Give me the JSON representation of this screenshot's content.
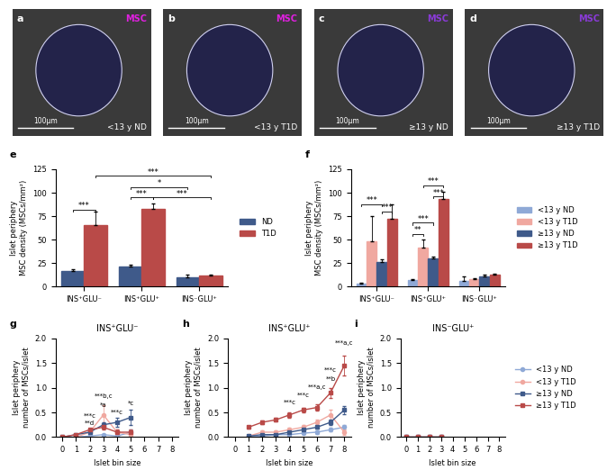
{
  "image_panels": [
    {
      "panel_letter": "a",
      "stain": "MSC",
      "stain_color": "#e020e0",
      "group": "<13 y ND",
      "scale_bar": "100µm"
    },
    {
      "panel_letter": "b",
      "stain": "MSC",
      "stain_color": "#e020e0",
      "group": "<13 y T1D",
      "scale_bar": "100µm"
    },
    {
      "panel_letter": "c",
      "stain": "MSC",
      "stain_color": "#8a3ad8",
      "group": "≥13 y ND",
      "scale_bar": "100µm"
    },
    {
      "panel_letter": "d",
      "stain": "MSC",
      "stain_color": "#8a3ad8",
      "group": "≥13 y T1D",
      "scale_bar": "100µm"
    }
  ],
  "chart_data": [
    {
      "type": "bar",
      "panel_letter": "e",
      "y_label": "Islet periphery\nMSC density (MSCs/mm²)",
      "categories": [
        "INS⁺GLU⁻",
        "INS⁺GLU⁺",
        "INS⁻GLU⁺"
      ],
      "series": [
        {
          "name": "ND",
          "color": "#3f5a8a",
          "values": [
            17,
            21,
            10
          ],
          "errors": [
            2,
            2,
            3
          ]
        },
        {
          "name": "T1D",
          "color": "#b94a48",
          "values": [
            66,
            83,
            12
          ],
          "errors": [
            14,
            6,
            1
          ]
        }
      ],
      "ylim": [
        0,
        125
      ],
      "yticks": [
        0,
        25,
        50,
        75,
        100,
        125
      ],
      "legend": "right",
      "brackets": [
        {
          "from": [
            0,
            0
          ],
          "to": [
            0,
            1
          ],
          "y": 82,
          "label": "***"
        },
        {
          "from": [
            0,
            1
          ],
          "to": [
            2,
            1
          ],
          "y": 118,
          "label": "***"
        },
        {
          "from": [
            1,
            0
          ],
          "to": [
            2,
            0
          ],
          "y": 106,
          "label": "*"
        },
        {
          "from": [
            1,
            0
          ],
          "to": [
            1,
            1
          ],
          "y": 95,
          "label": "***"
        },
        {
          "from": [
            1,
            1
          ],
          "to": [
            2,
            1
          ],
          "y": 95,
          "label": "***"
        }
      ]
    },
    {
      "type": "bar",
      "panel_letter": "f",
      "y_label": "Islet periphery\nMSC density (MSCs/mm²)",
      "categories": [
        "INS⁺GLU⁻",
        "INS⁺GLU⁺",
        "INS⁻GLU⁺"
      ],
      "series": [
        {
          "name": "<13 y ND",
          "color": "#8fa9d6",
          "values": [
            3,
            7,
            6
          ],
          "errors": [
            1,
            1,
            5
          ]
        },
        {
          "name": "<13 y T1D",
          "color": "#f0a8a0",
          "values": [
            48,
            42,
            8
          ],
          "errors": [
            27,
            8,
            1
          ]
        },
        {
          "name": "≥13 y ND",
          "color": "#3f5a8a",
          "values": [
            26,
            30,
            11
          ],
          "errors": [
            3,
            2,
            2
          ]
        },
        {
          "name": "≥13 y T1D",
          "color": "#b94a48",
          "values": [
            72,
            93,
            13
          ],
          "errors": [
            16,
            8,
            1
          ]
        }
      ],
      "ylim": [
        0,
        125
      ],
      "yticks": [
        0,
        25,
        50,
        75,
        100,
        125
      ],
      "legend": "right",
      "brackets": [
        {
          "from": [
            0,
            0
          ],
          "to": [
            0,
            2
          ],
          "y": 88,
          "label": "***"
        },
        {
          "from": [
            0,
            2
          ],
          "to": [
            0,
            3
          ],
          "y": 80,
          "label": "***"
        },
        {
          "from": [
            1,
            0
          ],
          "to": [
            1,
            1
          ],
          "y": 56,
          "label": "**"
        },
        {
          "from": [
            1,
            0
          ],
          "to": [
            1,
            2
          ],
          "y": 68,
          "label": "***"
        },
        {
          "from": [
            1,
            1
          ],
          "to": [
            1,
            3
          ],
          "y": 108,
          "label": "***"
        },
        {
          "from": [
            1,
            2
          ],
          "to": [
            1,
            3
          ],
          "y": 96,
          "label": "***"
        }
      ]
    },
    {
      "type": "line",
      "panel_letter": "g",
      "title": "INS⁺GLU⁻",
      "x_label": "Islet bin size",
      "y_label": "Islet periphery\nnumber of MSCs/islet",
      "series": [
        {
          "name": "<13 y ND",
          "color": "#8fa9d6",
          "marker": "circle",
          "x": [
            1,
            2,
            3,
            4,
            5
          ],
          "values": [
            0,
            0.02,
            0.05,
            0.02,
            0.1
          ],
          "errors": [
            0,
            0.01,
            0.02,
            0.02,
            0.05
          ]
        },
        {
          "name": "<13 y T1D",
          "color": "#f0a8a0",
          "marker": "circle",
          "x": [
            1,
            2,
            3,
            4,
            5
          ],
          "values": [
            0,
            0.1,
            0.45,
            0.1,
            0.05
          ],
          "errors": [
            0,
            0.05,
            0.2,
            0.05,
            0.03
          ]
        },
        {
          "name": "≥13 y ND",
          "color": "#3f5a8a",
          "marker": "square",
          "x": [
            0,
            1,
            2,
            3,
            4,
            5
          ],
          "values": [
            0,
            0.05,
            0.1,
            0.25,
            0.3,
            0.4
          ],
          "errors": [
            0,
            0.02,
            0.03,
            0.05,
            0.1,
            0.15
          ]
        },
        {
          "name": "≥13 y T1D",
          "color": "#b94a48",
          "marker": "square",
          "x": [
            0,
            1,
            2,
            3,
            4,
            5
          ],
          "values": [
            0,
            0.05,
            0.15,
            0.2,
            0.1,
            0.1
          ],
          "errors": [
            0,
            0.02,
            0.03,
            0.05,
            0.05,
            0.05
          ]
        }
      ],
      "annotations": [
        {
          "x": 2,
          "y": 0.38,
          "text": "***c"
        },
        {
          "x": 2,
          "y": 0.22,
          "text": "**d"
        },
        {
          "x": 3,
          "y": 0.78,
          "text": "***b,c"
        },
        {
          "x": 3,
          "y": 0.6,
          "text": "*a"
        },
        {
          "x": 4,
          "y": 0.44,
          "text": "***c"
        },
        {
          "x": 5,
          "y": 0.62,
          "text": "*c"
        }
      ],
      "xlim": [
        -0.5,
        8.5
      ],
      "xticks": [
        0,
        1,
        2,
        3,
        4,
        5,
        6,
        7,
        8
      ],
      "ylim": [
        0,
        2.0
      ],
      "yticks": [
        {
          "value": 0,
          "label": "0.0"
        },
        {
          "value": 0.5,
          "label": "0.5"
        },
        {
          "value": 1.0,
          "label": "1.0"
        },
        {
          "value": 1.5,
          "label": "1.5"
        },
        {
          "value": 2.0,
          "label": "2.0"
        }
      ]
    },
    {
      "type": "line",
      "panel_letter": "h",
      "title": "INS⁺GLU⁺",
      "x_label": "Islet bin size",
      "y_label": "Islet periphery\nnumber of MSCs/islet",
      "series": [
        {
          "name": "<13 y ND",
          "color": "#8fa9d6",
          "marker": "circle",
          "x": [
            1,
            2,
            3,
            4,
            5,
            6,
            7,
            8
          ],
          "values": [
            0,
            0.02,
            0.05,
            0.05,
            0.08,
            0.1,
            0.15,
            0.2
          ],
          "errors": [
            0,
            0.01,
            0.01,
            0.02,
            0.02,
            0.03,
            0.04,
            0.05
          ]
        },
        {
          "name": "<13 y T1D",
          "color": "#f0a8a0",
          "marker": "circle",
          "x": [
            1,
            2,
            3,
            4,
            5,
            6,
            7,
            8
          ],
          "values": [
            0.02,
            0.1,
            0.1,
            0.15,
            0.2,
            0.3,
            0.45,
            0.1
          ],
          "errors": [
            0.01,
            0.03,
            0.03,
            0.04,
            0.05,
            0.06,
            0.1,
            0.05
          ]
        },
        {
          "name": "≥13 y ND",
          "color": "#3f5a8a",
          "marker": "square",
          "x": [
            1,
            2,
            3,
            4,
            5,
            6,
            7,
            8
          ],
          "values": [
            0.02,
            0.05,
            0.05,
            0.1,
            0.15,
            0.2,
            0.3,
            0.55
          ],
          "errors": [
            0.01,
            0.01,
            0.02,
            0.02,
            0.03,
            0.03,
            0.05,
            0.08
          ]
        },
        {
          "name": "≥13 y T1D",
          "color": "#b94a48",
          "marker": "square",
          "x": [
            1,
            2,
            3,
            4,
            5,
            6,
            7,
            8
          ],
          "values": [
            0.2,
            0.3,
            0.35,
            0.45,
            0.55,
            0.6,
            0.9,
            1.45
          ],
          "errors": [
            0.03,
            0.04,
            0.04,
            0.05,
            0.05,
            0.06,
            0.1,
            0.2
          ]
        }
      ],
      "annotations": [
        {
          "x": 4,
          "y": 0.65,
          "text": "***c"
        },
        {
          "x": 5,
          "y": 0.8,
          "text": "***c"
        },
        {
          "x": 6,
          "y": 0.95,
          "text": "***a,c"
        },
        {
          "x": 7,
          "y": 1.3,
          "text": "***c"
        },
        {
          "x": 7,
          "y": 1.13,
          "text": "**b"
        },
        {
          "x": 8,
          "y": 1.85,
          "text": "***a,c"
        }
      ],
      "xlim": [
        -0.5,
        8.5
      ],
      "xticks": [
        0,
        1,
        2,
        3,
        4,
        5,
        6,
        7,
        8
      ],
      "ylim": [
        0,
        2.0
      ],
      "yticks": [
        {
          "value": 0,
          "label": "0.0"
        },
        {
          "value": 0.5,
          "label": "0.5"
        },
        {
          "value": 1.0,
          "label": "1.0"
        },
        {
          "value": 1.5,
          "label": "1.5"
        },
        {
          "value": 2.0,
          "label": "2.0"
        }
      ]
    },
    {
      "type": "line",
      "panel_letter": "i",
      "title": "INS⁻GLU⁺",
      "x_label": "Islet bin size",
      "y_label": "Islet periphery\nnumber of MSCs/islet",
      "series": [
        {
          "name": "<13 y ND",
          "color": "#8fa9d6",
          "marker": "circle",
          "x": [
            0,
            1,
            2,
            3
          ],
          "values": [
            0,
            0,
            0,
            0
          ],
          "errors": [
            0,
            0,
            0,
            0
          ]
        },
        {
          "name": "<13 y T1D",
          "color": "#f0a8a0",
          "marker": "circle",
          "x": [
            0,
            1,
            2,
            3
          ],
          "values": [
            0,
            0,
            0,
            0
          ],
          "errors": [
            0,
            0,
            0,
            0
          ]
        },
        {
          "name": "≥13 y ND",
          "color": "#3f5a8a",
          "marker": "square",
          "x": [
            0,
            1,
            2,
            3
          ],
          "values": [
            0,
            0,
            0,
            0
          ],
          "errors": [
            0,
            0,
            0,
            0
          ]
        },
        {
          "name": "≥13 y T1D",
          "color": "#b94a48",
          "marker": "square",
          "x": [
            0,
            1,
            2,
            3
          ],
          "values": [
            0,
            0,
            0,
            0
          ],
          "errors": [
            0,
            0,
            0,
            0
          ]
        }
      ],
      "legend": "right",
      "xlim": [
        -0.5,
        8.5
      ],
      "xticks": [
        0,
        1,
        2,
        3,
        4,
        5,
        6,
        7,
        8
      ],
      "ylim": [
        0,
        2.0
      ],
      "yticks": [
        {
          "value": 0,
          "label": "0.0"
        },
        {
          "value": 0.5,
          "label": "0.5"
        },
        {
          "value": 1.0,
          "label": "1.0"
        },
        {
          "value": 1.5,
          "label": "1.5"
        },
        {
          "value": 2.0,
          "label": "2.0"
        }
      ]
    }
  ]
}
